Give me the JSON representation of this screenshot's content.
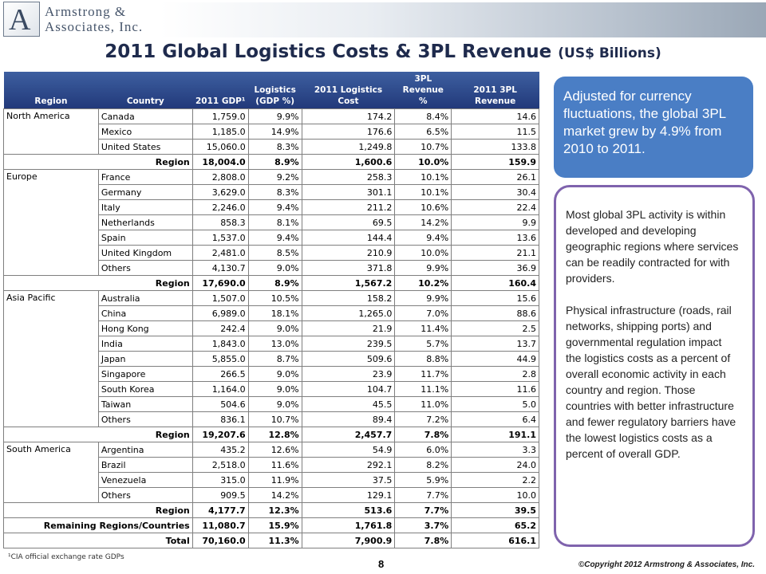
{
  "logo": {
    "letter": "A",
    "name_line1": "Armstrong &",
    "name_line2": "Associates, Inc."
  },
  "title": {
    "main": "2011 Global Logistics Costs & 3PL Revenue",
    "sub": "(US$ Billions)"
  },
  "table": {
    "headers": {
      "region": "Region",
      "country": "Country",
      "gdp": "2011 GDP¹",
      "logistics_pct": "Logistics (GDP %)",
      "logistics_cost": "2011 Logistics Cost",
      "revenue_pct": "3PL Revenue %",
      "revenue": "2011 3PL Revenue"
    },
    "groups": [
      {
        "region": "North America",
        "rows": [
          {
            "country": "Canada",
            "gdp": "1,759.0",
            "log_pct": "9.9%",
            "log_cost": "174.2",
            "rev_pct": "8.4%",
            "rev": "14.6"
          },
          {
            "country": "Mexico",
            "gdp": "1,185.0",
            "log_pct": "14.9%",
            "log_cost": "176.6",
            "rev_pct": "6.5%",
            "rev": "11.5"
          },
          {
            "country": "United States",
            "gdp": "15,060.0",
            "log_pct": "8.3%",
            "log_cost": "1,249.8",
            "rev_pct": "10.7%",
            "rev": "133.8"
          }
        ],
        "subtotal": {
          "label": "Region",
          "gdp": "18,004.0",
          "log_pct": "8.9%",
          "log_cost": "1,600.6",
          "rev_pct": "10.0%",
          "rev": "159.9"
        }
      },
      {
        "region": "Europe",
        "rows": [
          {
            "country": "France",
            "gdp": "2,808.0",
            "log_pct": "9.2%",
            "log_cost": "258.3",
            "rev_pct": "10.1%",
            "rev": "26.1"
          },
          {
            "country": "Germany",
            "gdp": "3,629.0",
            "log_pct": "8.3%",
            "log_cost": "301.1",
            "rev_pct": "10.1%",
            "rev": "30.4"
          },
          {
            "country": "Italy",
            "gdp": "2,246.0",
            "log_pct": "9.4%",
            "log_cost": "211.2",
            "rev_pct": "10.6%",
            "rev": "22.4"
          },
          {
            "country": "Netherlands",
            "gdp": "858.3",
            "log_pct": "8.1%",
            "log_cost": "69.5",
            "rev_pct": "14.2%",
            "rev": "9.9"
          },
          {
            "country": "Spain",
            "gdp": "1,537.0",
            "log_pct": "9.4%",
            "log_cost": "144.4",
            "rev_pct": "9.4%",
            "rev": "13.6"
          },
          {
            "country": "United Kingdom",
            "gdp": "2,481.0",
            "log_pct": "8.5%",
            "log_cost": "210.9",
            "rev_pct": "10.0%",
            "rev": "21.1"
          },
          {
            "country": "Others",
            "gdp": "4,130.7",
            "log_pct": "9.0%",
            "log_cost": "371.8",
            "rev_pct": "9.9%",
            "rev": "36.9"
          }
        ],
        "subtotal": {
          "label": "Region",
          "gdp": "17,690.0",
          "log_pct": "8.9%",
          "log_cost": "1,567.2",
          "rev_pct": "10.2%",
          "rev": "160.4"
        }
      },
      {
        "region": "Asia Pacific",
        "rows": [
          {
            "country": "Australia",
            "gdp": "1,507.0",
            "log_pct": "10.5%",
            "log_cost": "158.2",
            "rev_pct": "9.9%",
            "rev": "15.6"
          },
          {
            "country": "China",
            "gdp": "6,989.0",
            "log_pct": "18.1%",
            "log_cost": "1,265.0",
            "rev_pct": "7.0%",
            "rev": "88.6"
          },
          {
            "country": "Hong Kong",
            "gdp": "242.4",
            "log_pct": "9.0%",
            "log_cost": "21.9",
            "rev_pct": "11.4%",
            "rev": "2.5"
          },
          {
            "country": "India",
            "gdp": "1,843.0",
            "log_pct": "13.0%",
            "log_cost": "239.5",
            "rev_pct": "5.7%",
            "rev": "13.7"
          },
          {
            "country": "Japan",
            "gdp": "5,855.0",
            "log_pct": "8.7%",
            "log_cost": "509.6",
            "rev_pct": "8.8%",
            "rev": "44.9"
          },
          {
            "country": "Singapore",
            "gdp": "266.5",
            "log_pct": "9.0%",
            "log_cost": "23.9",
            "rev_pct": "11.7%",
            "rev": "2.8"
          },
          {
            "country": "South Korea",
            "gdp": "1,164.0",
            "log_pct": "9.0%",
            "log_cost": "104.7",
            "rev_pct": "11.1%",
            "rev": "11.6"
          },
          {
            "country": "Taiwan",
            "gdp": "504.6",
            "log_pct": "9.0%",
            "log_cost": "45.5",
            "rev_pct": "11.0%",
            "rev": "5.0"
          },
          {
            "country": "Others",
            "gdp": "836.1",
            "log_pct": "10.7%",
            "log_cost": "89.4",
            "rev_pct": "7.2%",
            "rev": "6.4"
          }
        ],
        "subtotal": {
          "label": "Region",
          "gdp": "19,207.6",
          "log_pct": "12.8%",
          "log_cost": "2,457.7",
          "rev_pct": "7.8%",
          "rev": "191.1"
        }
      },
      {
        "region": "South America",
        "rows": [
          {
            "country": "Argentina",
            "gdp": "435.2",
            "log_pct": "12.6%",
            "log_cost": "54.9",
            "rev_pct": "6.0%",
            "rev": "3.3"
          },
          {
            "country": "Brazil",
            "gdp": "2,518.0",
            "log_pct": "11.6%",
            "log_cost": "292.1",
            "rev_pct": "8.2%",
            "rev": "24.0"
          },
          {
            "country": "Venezuela",
            "gdp": "315.0",
            "log_pct": "11.9%",
            "log_cost": "37.5",
            "rev_pct": "5.9%",
            "rev": "2.2"
          },
          {
            "country": "Others",
            "gdp": "909.5",
            "log_pct": "14.2%",
            "log_cost": "129.1",
            "rev_pct": "7.7%",
            "rev": "10.0"
          }
        ],
        "subtotal": {
          "label": "Region",
          "gdp": "4,177.7",
          "log_pct": "12.3%",
          "log_cost": "513.6",
          "rev_pct": "7.7%",
          "rev": "39.5"
        }
      }
    ],
    "remaining": {
      "label": "Remaining Regions/Countries",
      "gdp": "11,080.7",
      "log_pct": "15.9%",
      "log_cost": "1,761.8",
      "rev_pct": "3.7%",
      "rev": "65.2"
    },
    "total": {
      "label": "Total",
      "gdp": "70,160.0",
      "log_pct": "11.3%",
      "log_cost": "7,900.9",
      "rev_pct": "7.8%",
      "rev": "616.1"
    }
  },
  "footnote": "¹CIA official exchange rate GDPs",
  "page_number": "8",
  "copyright": "©Copyright 2012 Armstrong & Associates, Inc.",
  "callout_highlight": "Adjusted for currency fluctuations, the global 3PL market grew by 4.9% from 2010 to 2011.",
  "callout_body": [
    "Most global 3PL activity is within developed and developing geographic regions where services can be readily contracted for with providers.",
    "Physical infrastructure (roads, rail networks, shipping ports) and governmental regulation impact the logistics costs as a percent of overall economic activity in each country and region. Those countries with better infrastructure and fewer regulatory barriers have the lowest logistics costs as a percent of overall GDP."
  ],
  "colors": {
    "title": "#1f2b4d",
    "header_bg": "#22397a",
    "callout_blue": "#4a7ec5",
    "callout_border": "#7f63ad"
  }
}
